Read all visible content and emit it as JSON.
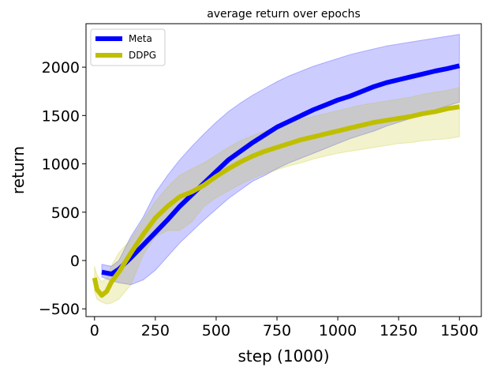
{
  "chart_data": {
    "type": "line",
    "title": "average return over epochs",
    "xlabel": "step (1000)",
    "ylabel": "return",
    "xlim": [
      -35,
      1590
    ],
    "ylim": [
      -580,
      2450
    ],
    "xticks": [
      0,
      250,
      500,
      750,
      1000,
      1250,
      1500
    ],
    "yticks": [
      -500,
      0,
      500,
      1000,
      1500,
      2000
    ],
    "xtick_labels": [
      "0",
      "250",
      "500",
      "750",
      "1000",
      "1250",
      "1500"
    ],
    "ytick_labels": [
      "−500",
      "0",
      "500",
      "1000",
      "1500",
      "2000"
    ],
    "grid": false,
    "legend_position": "top-left",
    "series": [
      {
        "name": "Meta",
        "color": "#0000ff",
        "band_color": "#0000ff",
        "x": [
          30,
          70,
          100,
          150,
          200,
          250,
          300,
          350,
          400,
          450,
          500,
          550,
          600,
          650,
          700,
          750,
          800,
          850,
          900,
          950,
          1000,
          1050,
          1100,
          1150,
          1200,
          1250,
          1300,
          1350,
          1400,
          1450,
          1500
        ],
        "y": [
          -120,
          -140,
          -90,
          30,
          160,
          290,
          420,
          560,
          680,
          800,
          920,
          1040,
          1130,
          1220,
          1300,
          1380,
          1440,
          1500,
          1560,
          1610,
          1660,
          1700,
          1750,
          1800,
          1840,
          1870,
          1900,
          1930,
          1960,
          1985,
          2015
        ],
        "upper": [
          -40,
          -60,
          0,
          250,
          450,
          700,
          880,
          1040,
          1180,
          1310,
          1430,
          1540,
          1630,
          1710,
          1780,
          1850,
          1910,
          1960,
          2010,
          2050,
          2090,
          2130,
          2160,
          2190,
          2220,
          2240,
          2260,
          2280,
          2300,
          2320,
          2340
        ],
        "lower": [
          -170,
          -210,
          -230,
          -250,
          -200,
          -100,
          40,
          180,
          300,
          420,
          530,
          640,
          730,
          820,
          880,
          950,
          1010,
          1060,
          1110,
          1160,
          1210,
          1260,
          1300,
          1340,
          1390,
          1430,
          1470,
          1520,
          1560,
          1600,
          1640
        ]
      },
      {
        "name": "DDPG",
        "color": "#bfbf00",
        "band_color": "#bfbf00",
        "x": [
          0,
          10,
          30,
          50,
          70,
          100,
          150,
          200,
          250,
          300,
          350,
          400,
          450,
          500,
          550,
          600,
          650,
          700,
          750,
          800,
          850,
          900,
          950,
          1000,
          1050,
          1100,
          1150,
          1200,
          1250,
          1300,
          1350,
          1400,
          1450,
          1500
        ],
        "y": [
          -180,
          -300,
          -360,
          -320,
          -220,
          -120,
          80,
          270,
          440,
          560,
          660,
          710,
          780,
          870,
          950,
          1020,
          1080,
          1130,
          1170,
          1210,
          1250,
          1280,
          1310,
          1340,
          1370,
          1400,
          1430,
          1450,
          1470,
          1490,
          1520,
          1540,
          1570,
          1590
        ],
        "upper": [
          -60,
          -150,
          -220,
          -180,
          -50,
          80,
          220,
          420,
          610,
          760,
          880,
          950,
          1010,
          1090,
          1170,
          1240,
          1290,
          1340,
          1380,
          1420,
          1460,
          1490,
          1520,
          1550,
          1580,
          1610,
          1630,
          1650,
          1670,
          1690,
          1720,
          1740,
          1760,
          1790
        ],
        "lower": [
          -320,
          -400,
          -430,
          -450,
          -440,
          -400,
          -250,
          60,
          250,
          310,
          310,
          400,
          560,
          650,
          720,
          790,
          850,
          900,
          940,
          980,
          1010,
          1050,
          1080,
          1110,
          1130,
          1150,
          1170,
          1190,
          1210,
          1220,
          1240,
          1250,
          1260,
          1280
        ]
      }
    ]
  }
}
